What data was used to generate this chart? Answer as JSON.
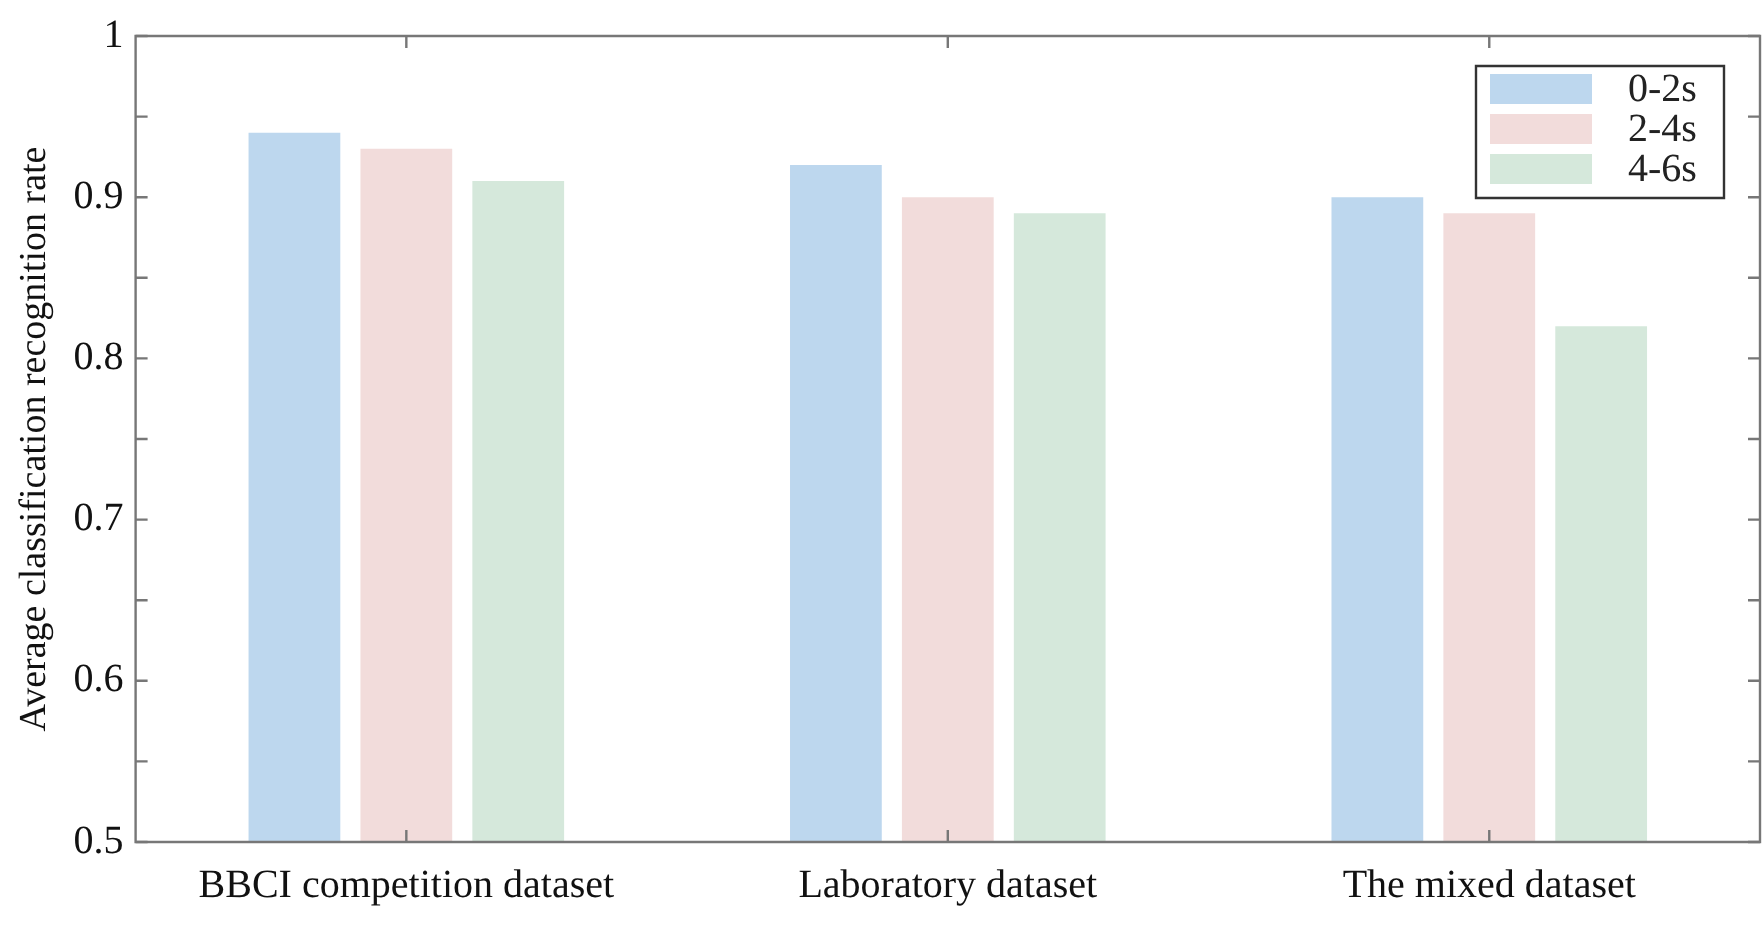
{
  "chart_data": {
    "type": "bar",
    "ylabel": "Average classification recognition rate",
    "categories": [
      "BBCI competition dataset",
      "Laboratory dataset",
      "The mixed dataset"
    ],
    "series": [
      {
        "name": "0-2s",
        "color": "#bdd7ee",
        "values": [
          0.94,
          0.92,
          0.9
        ]
      },
      {
        "name": "2-4s",
        "color": "#f2dcdb",
        "values": [
          0.93,
          0.9,
          0.89
        ]
      },
      {
        "name": "4-6s",
        "color": "#d5e8db",
        "values": [
          0.91,
          0.89,
          0.82
        ]
      }
    ],
    "ylim": [
      0.5,
      1
    ],
    "yticks": [
      0.5,
      {
        "value": 0.55,
        "label": null
      },
      0.6,
      {
        "value": 0.65,
        "label": null
      },
      0.7,
      {
        "value": 0.75,
        "label": null
      },
      0.8,
      {
        "value": 0.85,
        "label": null
      },
      0.9,
      {
        "value": 0.95,
        "label": null
      },
      1
    ],
    "grid": false,
    "legend": "top right"
  }
}
